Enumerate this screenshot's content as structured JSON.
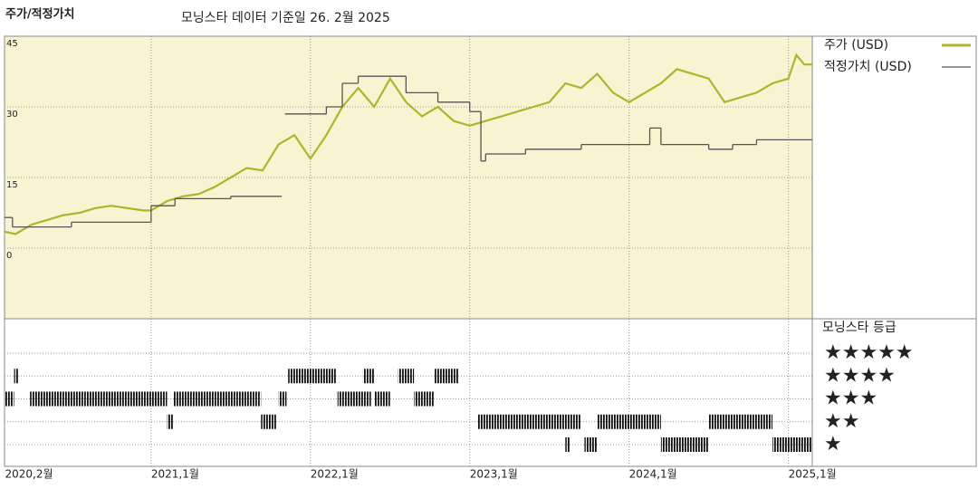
{
  "chart_data": {
    "type": "line",
    "title": "주가/적정가치",
    "subtitle": "모닝스타 데이터 기준일 26. 2월 2025",
    "xlim": [
      2020.08,
      2025.15
    ],
    "xticks": [
      {
        "value": 2020.083,
        "label": "2020,2월"
      },
      {
        "value": 2021.0,
        "label": "2021,1월"
      },
      {
        "value": 2022.0,
        "label": "2022,1월"
      },
      {
        "value": 2023.0,
        "label": "2023,1월"
      },
      {
        "value": 2024.0,
        "label": "2024,1월"
      },
      {
        "value": 2025.0,
        "label": "2025,1월"
      }
    ],
    "ylim": [
      -15,
      45
    ],
    "yticks": [
      0,
      15,
      30,
      45
    ],
    "grid": true,
    "series": [
      {
        "name": "주가 (USD)",
        "color": "#adb52a",
        "x": [
          2020.08,
          2020.15,
          2020.25,
          2020.35,
          2020.45,
          2020.55,
          2020.65,
          2020.75,
          2020.85,
          2020.95,
          2021.0,
          2021.1,
          2021.2,
          2021.3,
          2021.4,
          2021.5,
          2021.6,
          2021.7,
          2021.8,
          2021.9,
          2022.0,
          2022.1,
          2022.2,
          2022.3,
          2022.4,
          2022.5,
          2022.6,
          2022.7,
          2022.8,
          2022.9,
          2023.0,
          2023.1,
          2023.2,
          2023.3,
          2023.4,
          2023.5,
          2023.6,
          2023.7,
          2023.8,
          2023.9,
          2024.0,
          2024.1,
          2024.2,
          2024.3,
          2024.4,
          2024.5,
          2024.6,
          2024.7,
          2024.8,
          2024.9,
          2025.0,
          2025.05,
          2025.1,
          2025.15
        ],
        "values": [
          3.5,
          3,
          5,
          6,
          7,
          7.5,
          8.5,
          9,
          8.5,
          8,
          8,
          10,
          11,
          11.5,
          13,
          15,
          17,
          16.5,
          22,
          24,
          19,
          24,
          30,
          34,
          30,
          36,
          31,
          28,
          30,
          27,
          26,
          27,
          28,
          29,
          30,
          31,
          35,
          34,
          37,
          33,
          31,
          33,
          35,
          38,
          37,
          36,
          31,
          32,
          33,
          35,
          36,
          41,
          39,
          39
        ]
      },
      {
        "name": "적정가치 (USD)",
        "color": "#555555",
        "step": true,
        "x": [
          2020.08,
          2020.13,
          2020.5,
          2021.0,
          2021.15,
          2021.5,
          2021.82,
          2021.84,
          2022.1,
          2022.2,
          2022.3,
          2022.6,
          2022.8,
          2023.0,
          2023.07,
          2023.1,
          2023.35,
          2023.7,
          2024.13,
          2024.2,
          2024.5,
          2024.65,
          2024.8,
          2025.15
        ],
        "values": [
          6.5,
          4.5,
          5.5,
          9,
          10.5,
          11,
          null,
          28.5,
          30,
          35,
          36.5,
          33,
          31,
          29,
          18.5,
          20,
          21,
          22,
          25.5,
          22,
          21,
          22,
          23,
          23
        ]
      }
    ],
    "rating_title": "모닝스타 등급",
    "rating_ticks": [
      {
        "value": 5,
        "label": "★★★★★"
      },
      {
        "value": 4,
        "label": "★★★★"
      },
      {
        "value": 3,
        "label": "★★★"
      },
      {
        "value": 2,
        "label": "★★"
      },
      {
        "value": 1,
        "label": "★"
      }
    ],
    "ratings": [
      {
        "from": 2020.08,
        "to": 2020.14,
        "stars": 3
      },
      {
        "from": 2020.14,
        "to": 2020.17,
        "stars": 4
      },
      {
        "from": 2020.24,
        "to": 2021.1,
        "stars": 3
      },
      {
        "from": 2021.1,
        "to": 2021.14,
        "stars": 2
      },
      {
        "from": 2021.14,
        "to": 2021.69,
        "stars": 3
      },
      {
        "from": 2021.69,
        "to": 2021.79,
        "stars": 2
      },
      {
        "from": 2021.8,
        "to": 2021.85,
        "stars": 3
      },
      {
        "from": 2021.86,
        "to": 2022.16,
        "stars": 4
      },
      {
        "from": 2022.17,
        "to": 2022.38,
        "stars": 3
      },
      {
        "from": 2022.33,
        "to": 2022.4,
        "stars": 4
      },
      {
        "from": 2022.4,
        "to": 2022.5,
        "stars": 3
      },
      {
        "from": 2022.55,
        "to": 2022.65,
        "stars": 4
      },
      {
        "from": 2022.65,
        "to": 2022.78,
        "stars": 3
      },
      {
        "from": 2022.78,
        "to": 2022.93,
        "stars": 4
      },
      {
        "from": 2023.05,
        "to": 2023.7,
        "stars": 2
      },
      {
        "from": 2023.6,
        "to": 2023.63,
        "stars": 1
      },
      {
        "from": 2023.72,
        "to": 2023.8,
        "stars": 1
      },
      {
        "from": 2023.8,
        "to": 2024.2,
        "stars": 2
      },
      {
        "from": 2024.2,
        "to": 2024.5,
        "stars": 1
      },
      {
        "from": 2024.5,
        "to": 2024.9,
        "stars": 2
      },
      {
        "from": 2024.9,
        "to": 2025.15,
        "stars": 1
      }
    ]
  }
}
